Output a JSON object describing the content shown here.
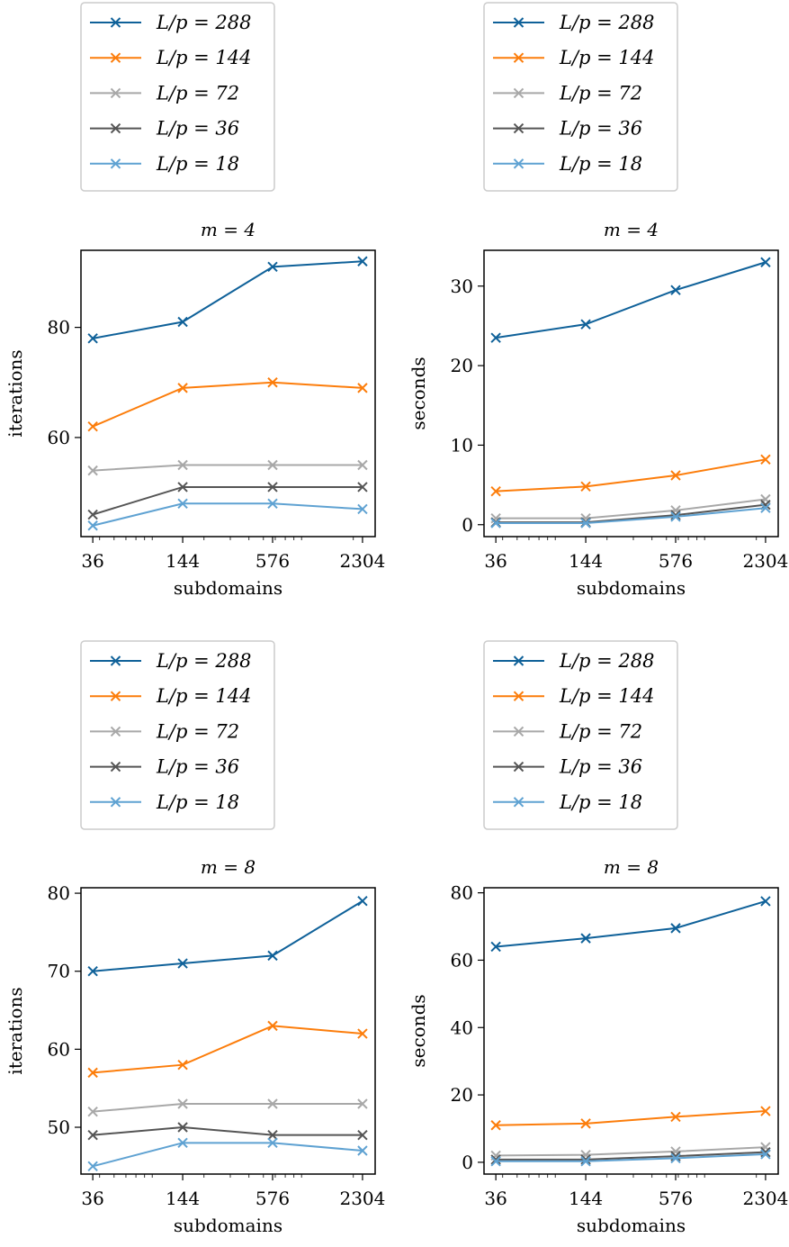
{
  "chart_data": [
    {
      "type": "line",
      "title": "m = 4",
      "xlabel": "subdomains",
      "ylabel": "iterations",
      "x": [
        36,
        144,
        576,
        2304
      ],
      "x_tick_labels": [
        "36",
        "144",
        "576",
        "2304"
      ],
      "x_scale": "log",
      "xlim": [
        30,
        2800
      ],
      "ylim": [
        42,
        94
      ],
      "y_ticks": [
        60,
        80
      ],
      "y_tick_labels": [
        "60",
        "80"
      ],
      "legend_position": "above plot",
      "series": [
        {
          "name": "L/p = 288",
          "color": "#0f6199",
          "values": [
            78,
            81,
            91,
            92
          ]
        },
        {
          "name": "L/p = 144",
          "color": "#fc7d0b",
          "values": [
            62,
            69,
            70,
            69
          ]
        },
        {
          "name": "L/p = 72",
          "color": "#a8a8a8",
          "values": [
            54,
            55,
            55,
            55
          ]
        },
        {
          "name": "L/p = 36",
          "color": "#555555",
          "values": [
            46,
            51,
            51,
            51
          ]
        },
        {
          "name": "L/p = 18",
          "color": "#5fa2d2",
          "values": [
            44,
            48,
            48,
            47
          ]
        }
      ]
    },
    {
      "type": "line",
      "title": "m = 4",
      "xlabel": "subdomains",
      "ylabel": "seconds",
      "x": [
        36,
        144,
        576,
        2304
      ],
      "x_tick_labels": [
        "36",
        "144",
        "576",
        "2304"
      ],
      "x_scale": "log",
      "xlim": [
        30,
        2800
      ],
      "ylim": [
        -1.5,
        34.5
      ],
      "y_ticks": [
        0,
        10,
        20,
        30
      ],
      "y_tick_labels": [
        "0",
        "10",
        "20",
        "30"
      ],
      "legend_position": "above plot",
      "series": [
        {
          "name": "L/p = 288",
          "color": "#0f6199",
          "values": [
            23.5,
            25.2,
            29.5,
            33.0
          ]
        },
        {
          "name": "L/p = 144",
          "color": "#fc7d0b",
          "values": [
            4.2,
            4.8,
            6.2,
            8.2
          ]
        },
        {
          "name": "L/p = 72",
          "color": "#a8a8a8",
          "values": [
            0.8,
            0.8,
            1.8,
            3.2
          ]
        },
        {
          "name": "L/p = 36",
          "color": "#555555",
          "values": [
            0.3,
            0.3,
            1.2,
            2.5
          ]
        },
        {
          "name": "L/p = 18",
          "color": "#5fa2d2",
          "values": [
            0.2,
            0.2,
            1.0,
            2.1
          ]
        }
      ]
    },
    {
      "type": "line",
      "title": "m = 8",
      "xlabel": "subdomains",
      "ylabel": "iterations",
      "x": [
        36,
        144,
        576,
        2304
      ],
      "x_tick_labels": [
        "36",
        "144",
        "576",
        "2304"
      ],
      "x_scale": "log",
      "xlim": [
        30,
        2800
      ],
      "ylim": [
        44,
        80.7
      ],
      "y_ticks": [
        50,
        60,
        70,
        80
      ],
      "y_tick_labels": [
        "50",
        "60",
        "70",
        "80"
      ],
      "legend_position": "above plot",
      "series": [
        {
          "name": "L/p = 288",
          "color": "#0f6199",
          "values": [
            70,
            71,
            72,
            79
          ]
        },
        {
          "name": "L/p = 144",
          "color": "#fc7d0b",
          "values": [
            57,
            58,
            63,
            62
          ]
        },
        {
          "name": "L/p = 72",
          "color": "#a8a8a8",
          "values": [
            52,
            53,
            53,
            53
          ]
        },
        {
          "name": "L/p = 36",
          "color": "#555555",
          "values": [
            49,
            50,
            49,
            49
          ]
        },
        {
          "name": "L/p = 18",
          "color": "#5fa2d2",
          "values": [
            45,
            48,
            48,
            47
          ]
        }
      ]
    },
    {
      "type": "line",
      "title": "m = 8",
      "xlabel": "subdomains",
      "ylabel": "seconds",
      "x": [
        36,
        144,
        576,
        2304
      ],
      "x_tick_labels": [
        "36",
        "144",
        "576",
        "2304"
      ],
      "x_scale": "log",
      "xlim": [
        30,
        2800
      ],
      "ylim": [
        -3.5,
        81.5
      ],
      "y_ticks": [
        0,
        20,
        40,
        60,
        80
      ],
      "y_tick_labels": [
        "0",
        "20",
        "40",
        "60",
        "80"
      ],
      "legend_position": "above plot",
      "series": [
        {
          "name": "L/p = 288",
          "color": "#0f6199",
          "values": [
            64,
            66.5,
            69.5,
            77.5
          ]
        },
        {
          "name": "L/p = 144",
          "color": "#fc7d0b",
          "values": [
            11,
            11.5,
            13.5,
            15.2
          ]
        },
        {
          "name": "L/p = 72",
          "color": "#a8a8a8",
          "values": [
            2,
            2.2,
            3.2,
            4.5
          ]
        },
        {
          "name": "L/p = 36",
          "color": "#555555",
          "values": [
            0.8,
            0.8,
            1.8,
            3.0
          ]
        },
        {
          "name": "L/p = 18",
          "color": "#5fa2d2",
          "values": [
            0.3,
            0.3,
            1.2,
            2.4
          ]
        }
      ]
    }
  ]
}
